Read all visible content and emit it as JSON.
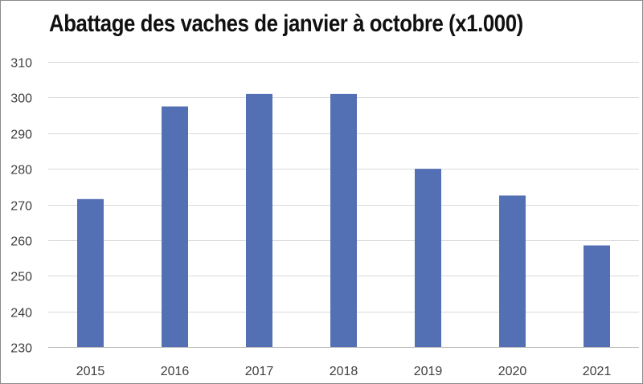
{
  "chart_data": {
    "type": "bar",
    "title": "Abattage des vaches de janvier à octobre (x1.000)",
    "xlabel": "",
    "ylabel": "",
    "categories": [
      "2015",
      "2016",
      "2017",
      "2018",
      "2019",
      "2020",
      "2021"
    ],
    "values": [
      271.5,
      297.5,
      301,
      301,
      280,
      272.5,
      258.5
    ],
    "ylim": [
      230,
      310
    ],
    "yticks": [
      230,
      240,
      250,
      260,
      270,
      280,
      290,
      300,
      310
    ],
    "grid": true,
    "legend": "none",
    "bar_color": "#5470b4",
    "grid_color": "#d9d9d9"
  }
}
